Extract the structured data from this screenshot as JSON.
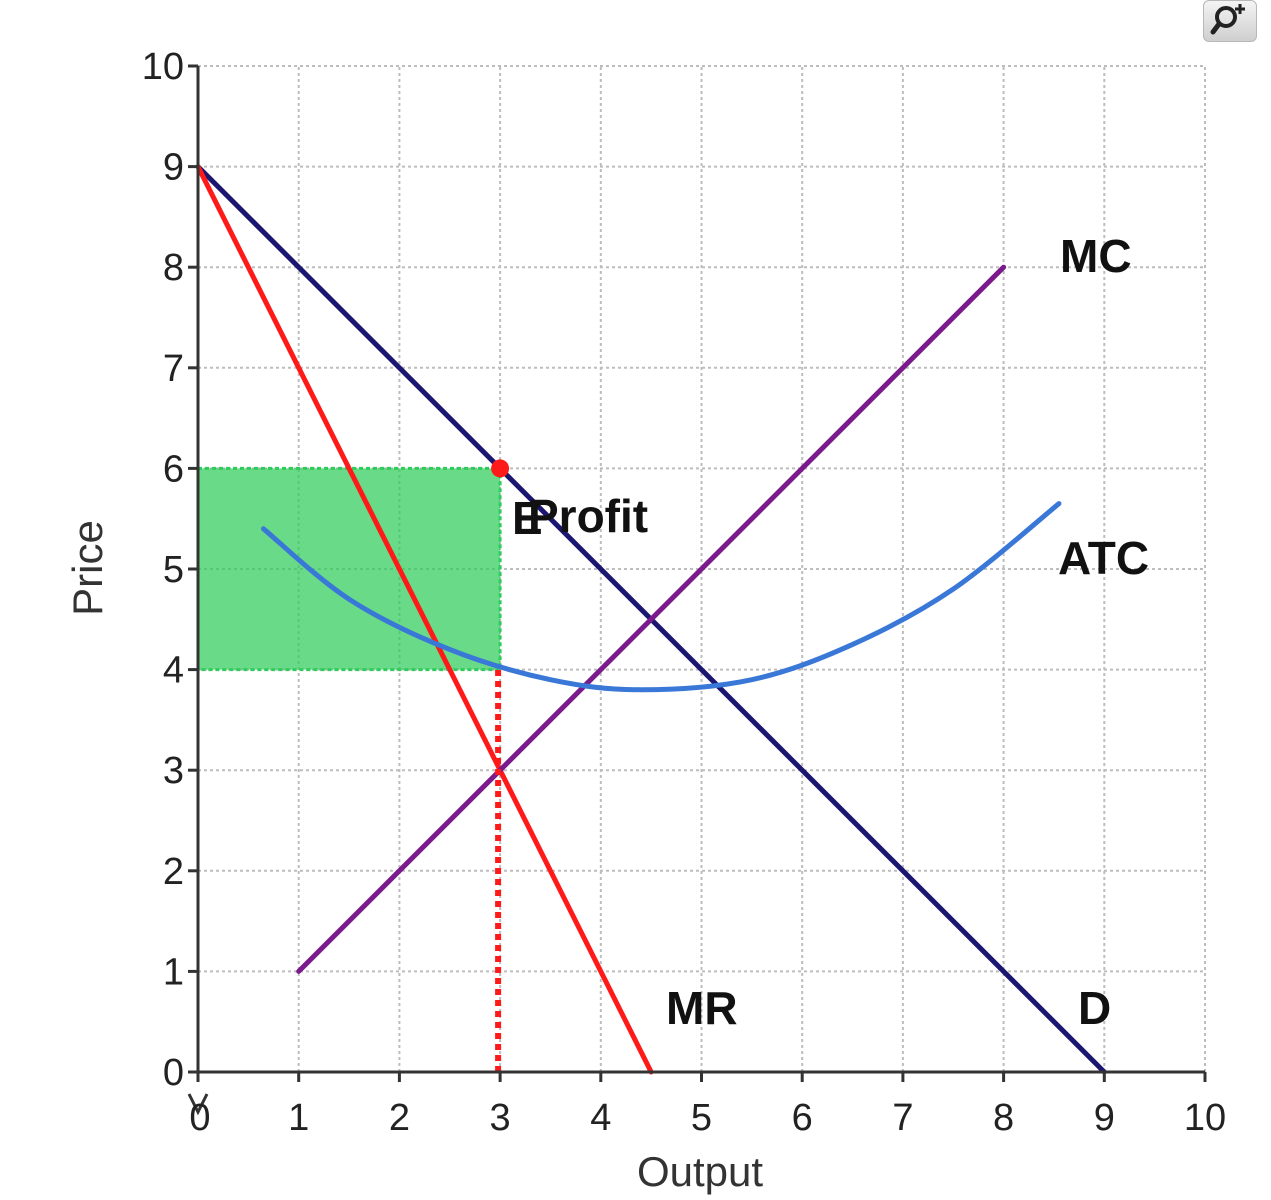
{
  "chart_data": {
    "type": "line",
    "title": "",
    "xlabel": "Output",
    "ylabel": "Price",
    "xlim": [
      0,
      10
    ],
    "ylim": [
      0,
      10
    ],
    "x_ticks": [
      "0",
      "1",
      "2",
      "3",
      "4",
      "5",
      "6",
      "7",
      "8",
      "9",
      "10"
    ],
    "y_ticks": [
      "0",
      "1",
      "2",
      "3",
      "4",
      "5",
      "6",
      "7",
      "8",
      "9",
      "10"
    ],
    "grid": true,
    "series": [
      {
        "name": "D",
        "color": "#1b1670",
        "points": [
          [
            0,
            9
          ],
          [
            9,
            0
          ]
        ]
      },
      {
        "name": "MR",
        "color": "#ff1a1a",
        "points": [
          [
            0,
            9
          ],
          [
            4.5,
            0
          ]
        ]
      },
      {
        "name": "MC",
        "color": "#7a1a8c",
        "points": [
          [
            1,
            1
          ],
          [
            8,
            8
          ]
        ]
      },
      {
        "name": "ATC",
        "color": "#3a78d8",
        "points": [
          [
            0.65,
            5.4
          ],
          [
            1.5,
            4.7
          ],
          [
            2.5,
            4.2
          ],
          [
            3.5,
            3.9
          ],
          [
            4.4,
            3.8
          ],
          [
            5.5,
            3.9
          ],
          [
            6.5,
            4.25
          ],
          [
            7.5,
            4.8
          ],
          [
            8.55,
            5.65
          ]
        ]
      }
    ],
    "profit_area": {
      "label": "Profit",
      "x": [
        0,
        3
      ],
      "y": [
        4,
        6
      ],
      "color": "#2ecc5a"
    },
    "marked_point": {
      "x": 3,
      "y": 6,
      "label": "E",
      "color": "#ff1a1a"
    },
    "dotted_line": {
      "x": 3,
      "y": [
        0,
        4
      ],
      "color": "#ff1a1a"
    }
  },
  "labels": {
    "zoom_icon": "zoom-in-icon"
  }
}
